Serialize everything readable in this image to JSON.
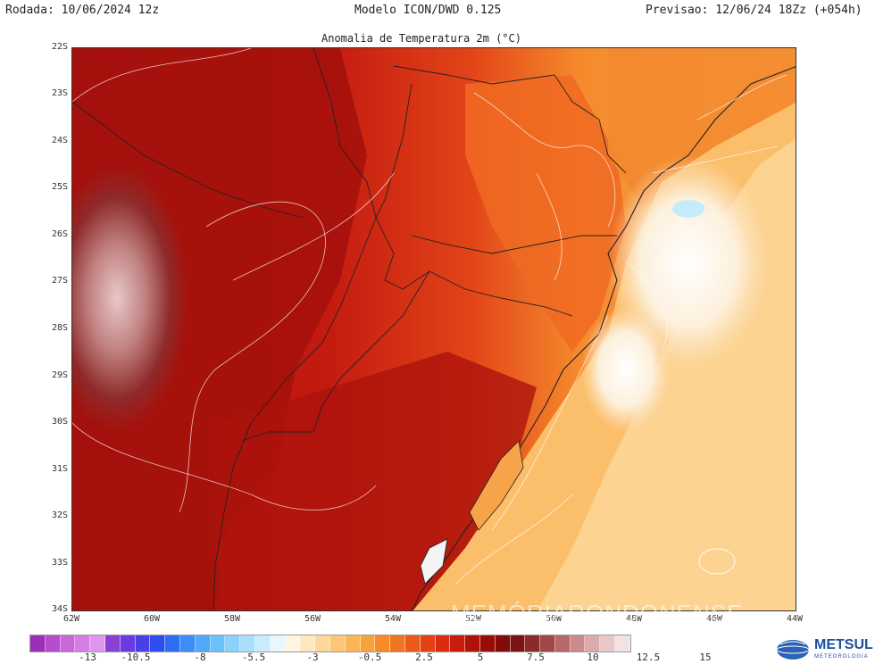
{
  "header": {
    "run_label": "Rodada: 10/06/2024 12z",
    "model_label": "Modelo ICON/DWD 0.125",
    "forecast_label": "Previsao: 12/06/24 18Zz (+054h)",
    "title": "Anomalia de Temperatura 2m (°C)"
  },
  "axes": {
    "lat_labels": [
      "22S",
      "23S",
      "24S",
      "25S",
      "26S",
      "27S",
      "28S",
      "29S",
      "30S",
      "31S",
      "32S",
      "33S",
      "34S"
    ],
    "lon_labels": [
      "62W",
      "60W",
      "58W",
      "56W",
      "54W",
      "52W",
      "50W",
      "48W",
      "46W",
      "44W"
    ]
  },
  "colorbar": {
    "tick_labels": [
      "-13",
      "-10.5",
      "-8",
      "-5.5",
      "-3",
      "-0.5",
      "2.5",
      "5",
      "7.5",
      "10",
      "12.5",
      "15"
    ],
    "colors": [
      "#9c2fb8",
      "#b64cd0",
      "#c866dc",
      "#d47ee4",
      "#de96ec",
      "#8a3fd6",
      "#6a3be0",
      "#4a3ee8",
      "#2f4cf0",
      "#2f6ef4",
      "#3c8ef6",
      "#52a8f8",
      "#6ac0fa",
      "#88d2fc",
      "#a8e0fc",
      "#c8ecfc",
      "#e8f6fd",
      "#fff4e2",
      "#fde6c0",
      "#fcd79c",
      "#fbc777",
      "#fab555",
      "#f9a13a",
      "#f68b2a",
      "#f27320",
      "#ec5a18",
      "#e44214",
      "#dc2c10",
      "#c81c0c",
      "#b0120a",
      "#9a0c08",
      "#850a0a",
      "#7a1414",
      "#8a2a2a",
      "#a04848",
      "#b86868",
      "#cc8a8a",
      "#dcaaaa",
      "#e9c8c8",
      "#f3e2e2"
    ]
  },
  "watermark": "MEMÓRIARONDONENSE",
  "logo": {
    "name": "METSUL",
    "sub": "METEOROLOGIA",
    "icon": "globe-icon"
  }
}
